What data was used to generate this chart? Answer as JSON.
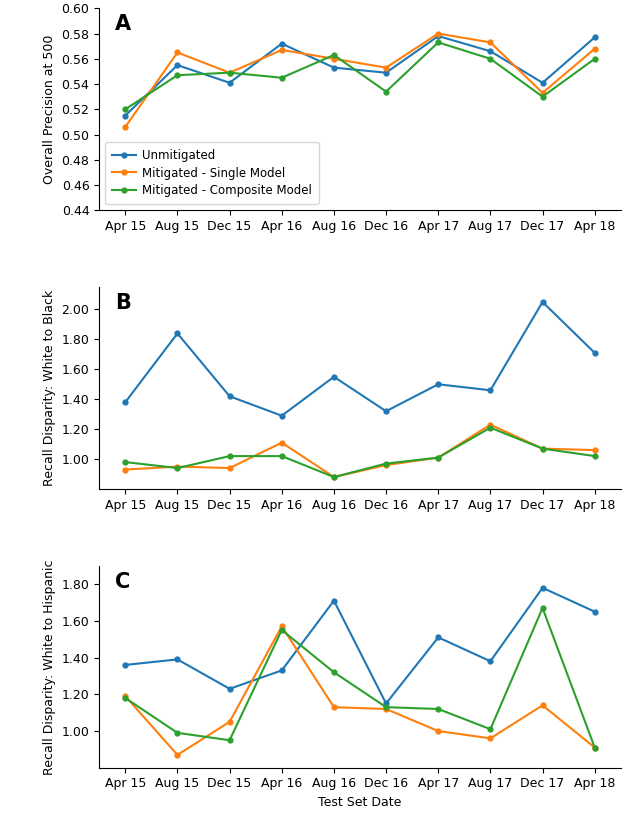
{
  "x_labels": [
    "Apr 15",
    "Aug 15",
    "Dec 15",
    "Apr 16",
    "Aug 16",
    "Dec 16",
    "Apr 17",
    "Aug 17",
    "Dec 17",
    "Apr 18"
  ],
  "panel_A": {
    "label": "A",
    "ylabel": "Overall Precision at 500",
    "ylim": [
      0.44,
      0.6
    ],
    "yticks": [
      0.44,
      0.46,
      0.48,
      0.5,
      0.52,
      0.54,
      0.56,
      0.58,
      0.6
    ],
    "unmitigated": [
      0.515,
      0.555,
      0.541,
      0.572,
      0.553,
      0.549,
      0.578,
      0.566,
      0.541,
      0.577
    ],
    "single": [
      0.506,
      0.565,
      0.549,
      0.567,
      0.56,
      0.553,
      0.58,
      0.573,
      0.533,
      0.568
    ],
    "composite": [
      0.52,
      0.547,
      0.549,
      0.545,
      0.563,
      0.534,
      0.573,
      0.56,
      0.53,
      0.56
    ]
  },
  "panel_B": {
    "label": "B",
    "ylabel": "Recall Disparity: White to Black",
    "ylim": [
      0.8,
      2.15
    ],
    "yticks": [
      1.0,
      1.2,
      1.4,
      1.6,
      1.8,
      2.0
    ],
    "unmitigated": [
      1.38,
      1.84,
      1.42,
      1.29,
      1.55,
      1.32,
      1.5,
      1.46,
      2.05,
      1.71
    ],
    "single": [
      0.93,
      0.95,
      0.94,
      1.11,
      0.88,
      0.96,
      1.01,
      1.23,
      1.07,
      1.06
    ],
    "composite": [
      0.98,
      0.94,
      1.02,
      1.02,
      0.88,
      0.97,
      1.01,
      1.21,
      1.07,
      1.02
    ]
  },
  "panel_C": {
    "label": "C",
    "ylabel": "Recall Disparity: White to Hispanic",
    "xlabel": "Test Set Date",
    "ylim": [
      0.8,
      1.9
    ],
    "yticks": [
      1.0,
      1.2,
      1.4,
      1.6,
      1.8
    ],
    "unmitigated": [
      1.36,
      1.39,
      1.23,
      1.33,
      1.71,
      1.15,
      1.51,
      1.38,
      1.78,
      1.65
    ],
    "single": [
      1.19,
      0.87,
      1.05,
      1.57,
      1.13,
      1.12,
      1.0,
      0.96,
      1.14,
      0.91
    ],
    "composite": [
      1.18,
      0.99,
      0.95,
      1.55,
      1.32,
      1.13,
      1.12,
      1.01,
      1.67,
      0.91
    ]
  },
  "colors": {
    "unmitigated": "#1f77b4",
    "single": "#ff7f0e",
    "composite": "#2ca02c"
  },
  "legend_labels": [
    "Unmitigated",
    "Mitigated - Single Model",
    "Mitigated - Composite Model"
  ]
}
